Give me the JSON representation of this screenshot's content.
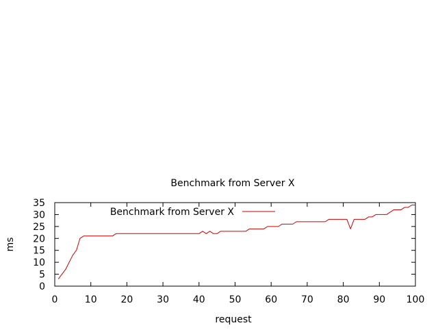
{
  "chart_data": {
    "type": "line",
    "title": "Benchmark from Server X",
    "xlabel": "request",
    "ylabel": "ms",
    "xlim": [
      0,
      100
    ],
    "ylim": [
      0,
      35
    ],
    "xticks": [
      0,
      10,
      20,
      30,
      40,
      50,
      60,
      70,
      80,
      90,
      100
    ],
    "yticks": [
      0,
      5,
      10,
      15,
      20,
      25,
      30,
      35
    ],
    "grid": false,
    "legend_position": "top-left",
    "series": [
      {
        "name": "Benchmark from Server X",
        "color": "#cc0000",
        "x": [
          1,
          2,
          3,
          4,
          5,
          6,
          7,
          8,
          9,
          10,
          11,
          12,
          13,
          14,
          15,
          16,
          17,
          18,
          19,
          20,
          21,
          22,
          23,
          24,
          25,
          26,
          27,
          28,
          29,
          30,
          31,
          32,
          33,
          34,
          35,
          36,
          37,
          38,
          39,
          40,
          41,
          42,
          43,
          44,
          45,
          46,
          47,
          48,
          49,
          50,
          51,
          52,
          53,
          54,
          55,
          56,
          57,
          58,
          59,
          60,
          61,
          62,
          63,
          64,
          65,
          66,
          67,
          68,
          69,
          70,
          71,
          72,
          73,
          74,
          75,
          76,
          77,
          78,
          79,
          80,
          81,
          82,
          83,
          84,
          85,
          86,
          87,
          88,
          89,
          90,
          91,
          92,
          93,
          94,
          95,
          96,
          97,
          98,
          99,
          100
        ],
        "y": [
          3,
          5,
          7,
          10,
          13,
          15,
          20,
          21,
          21,
          21,
          21,
          21,
          21,
          21,
          21,
          21,
          22,
          22,
          22,
          22,
          22,
          22,
          22,
          22,
          22,
          22,
          22,
          22,
          22,
          22,
          22,
          22,
          22,
          22,
          22,
          22,
          22,
          22,
          22,
          22,
          23,
          22,
          23,
          22,
          22,
          23,
          23,
          23,
          23,
          23,
          23,
          23,
          23,
          24,
          24,
          24,
          24,
          24,
          25,
          25,
          25,
          25,
          26,
          26,
          26,
          26,
          27,
          27,
          27,
          27,
          27,
          27,
          27,
          27,
          27,
          28,
          28,
          28,
          28,
          28,
          28,
          24,
          28,
          28,
          28,
          28,
          29,
          29,
          30,
          30,
          30,
          30,
          31,
          32,
          32,
          32,
          33,
          33,
          34,
          34
        ]
      }
    ]
  }
}
